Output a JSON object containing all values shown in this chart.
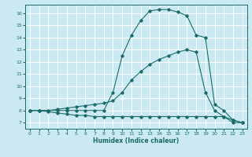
{
  "xlabel": "Humidex (Indice chaleur)",
  "bg_color": "#cbe9f0",
  "grid_color": "#ffffff",
  "line_color": "#1a6b6b",
  "xlim": [
    -0.5,
    23.5
  ],
  "ylim": [
    6.5,
    16.7
  ],
  "xticks": [
    0,
    1,
    2,
    3,
    4,
    5,
    6,
    7,
    8,
    9,
    10,
    11,
    12,
    13,
    14,
    15,
    16,
    17,
    18,
    19,
    20,
    21,
    22,
    23
  ],
  "yticks": [
    7,
    8,
    9,
    10,
    11,
    12,
    13,
    14,
    15,
    16
  ],
  "series1_x": [
    0,
    1,
    2,
    3,
    4,
    5,
    6,
    7,
    8,
    9,
    10,
    11,
    12,
    13,
    14,
    15,
    16,
    17,
    18,
    19,
    20,
    21,
    22,
    23
  ],
  "series1_y": [
    8.0,
    8.0,
    7.9,
    7.8,
    7.7,
    7.6,
    7.6,
    7.5,
    7.5,
    7.5,
    7.5,
    7.5,
    7.5,
    7.5,
    7.5,
    7.5,
    7.5,
    7.5,
    7.5,
    7.5,
    7.5,
    7.5,
    7.2,
    7.0
  ],
  "series2_x": [
    0,
    1,
    2,
    3,
    4,
    5,
    6,
    7,
    8,
    9,
    10,
    11,
    12,
    13,
    14,
    15,
    16,
    17,
    18,
    19,
    20,
    21,
    22,
    23
  ],
  "series2_y": [
    8.0,
    8.0,
    8.0,
    8.1,
    8.2,
    8.3,
    8.4,
    8.5,
    8.6,
    8.8,
    9.5,
    10.5,
    11.2,
    11.8,
    12.2,
    12.5,
    12.8,
    13.0,
    12.8,
    9.5,
    8.0,
    7.5,
    7.0,
    7.0
  ],
  "series3_x": [
    0,
    1,
    2,
    3,
    4,
    5,
    6,
    7,
    8,
    9,
    10,
    11,
    12,
    13,
    14,
    15,
    16,
    17,
    18,
    19,
    20,
    21,
    22,
    23
  ],
  "series3_y": [
    8.0,
    8.0,
    8.0,
    8.0,
    8.0,
    8.0,
    8.0,
    8.0,
    8.0,
    9.5,
    12.5,
    14.2,
    15.4,
    16.2,
    16.3,
    16.3,
    16.1,
    15.8,
    14.2,
    14.0,
    8.5,
    8.0,
    7.2,
    7.0
  ]
}
